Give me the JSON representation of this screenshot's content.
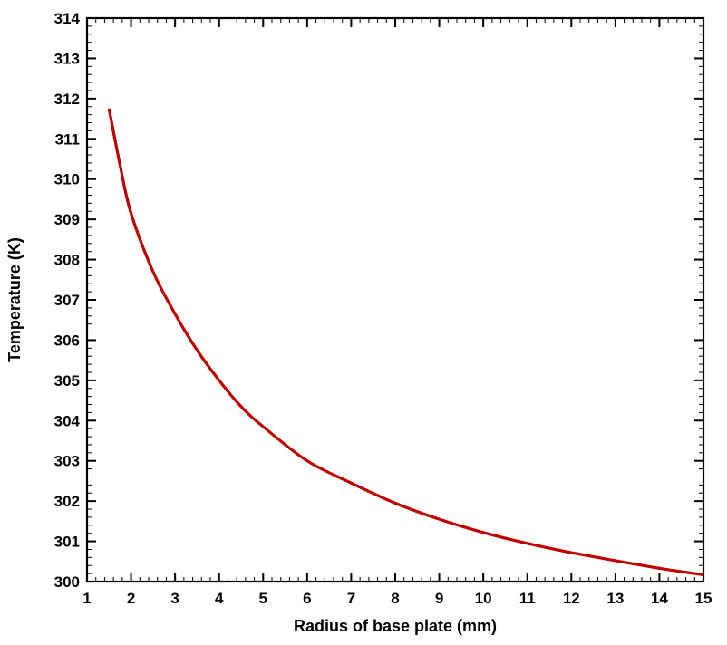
{
  "chart_data": {
    "type": "line",
    "title": "",
    "xlabel": "Radius of base plate (mm)",
    "ylabel": "Temperature (K)",
    "xlim": [
      1,
      15
    ],
    "ylim": [
      300,
      314
    ],
    "x_ticks": [
      "1",
      "2",
      "3",
      "4",
      "5",
      "6",
      "7",
      "8",
      "9",
      "10",
      "11",
      "12",
      "13",
      "14",
      "15"
    ],
    "y_ticks": [
      "300",
      "301",
      "302",
      "303",
      "304",
      "305",
      "306",
      "307",
      "308",
      "309",
      "310",
      "311",
      "312",
      "313",
      "314"
    ],
    "grid": false,
    "legend": "none",
    "line_color": "#c00000",
    "series": [
      {
        "x": [
          1.5,
          1.75,
          2.0,
          2.5,
          3.0,
          3.5,
          4.0,
          4.5,
          5.0,
          6.0,
          7.0,
          8.0,
          9.0,
          10.0,
          11.0,
          12.0,
          13.0,
          14.0,
          15.0
        ],
        "y": [
          311.75,
          310.35,
          309.15,
          307.7,
          306.65,
          305.75,
          305.0,
          304.35,
          303.85,
          303.0,
          302.45,
          301.95,
          301.55,
          301.22,
          300.95,
          300.72,
          300.52,
          300.33,
          300.17
        ]
      }
    ]
  }
}
